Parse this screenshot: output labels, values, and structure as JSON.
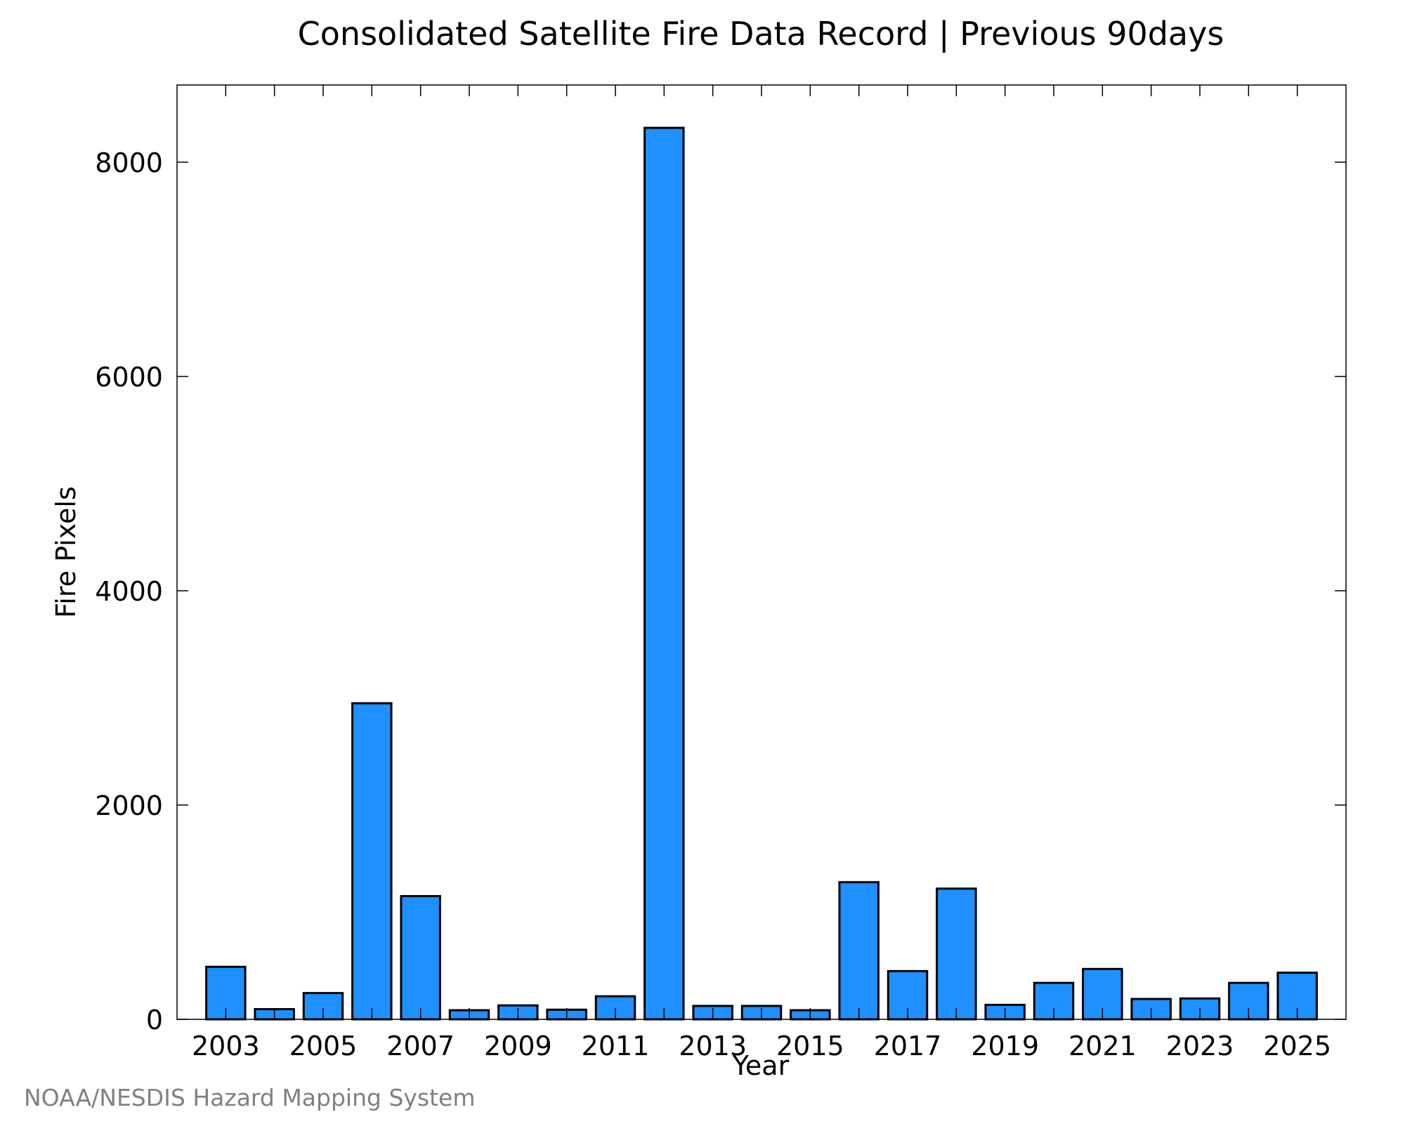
{
  "page": {
    "title": "Consolidated Satellite Fire Data Record | Previous 90days",
    "credit": "NOAA/NESDIS Hazard Mapping System"
  },
  "chart_data": {
    "type": "bar",
    "title": "Consolidated Satellite Fire Data Record | Previous 90days",
    "xlabel": "Year",
    "ylabel": "Fire Pixels",
    "categories": [
      "2003",
      "2004",
      "2005",
      "2006",
      "2007",
      "2008",
      "2009",
      "2010",
      "2011",
      "2012",
      "2013",
      "2014",
      "2015",
      "2016",
      "2017",
      "2018",
      "2019",
      "2020",
      "2021",
      "2022",
      "2023",
      "2024",
      "2025"
    ],
    "values": [
      490,
      95,
      245,
      2950,
      1150,
      85,
      130,
      90,
      215,
      8320,
      125,
      125,
      85,
      1280,
      450,
      1220,
      135,
      340,
      470,
      190,
      195,
      340,
      435
    ],
    "xticks": [
      "2003",
      "2005",
      "2007",
      "2009",
      "2011",
      "2013",
      "2015",
      "2017",
      "2019",
      "2021",
      "2023",
      "2025"
    ],
    "yticks": [
      0,
      2000,
      4000,
      6000,
      8000
    ],
    "ylim": [
      0,
      8720
    ],
    "xlim": [
      2002,
      2026
    ],
    "grid": false,
    "bar_color": "#1E90FF"
  }
}
